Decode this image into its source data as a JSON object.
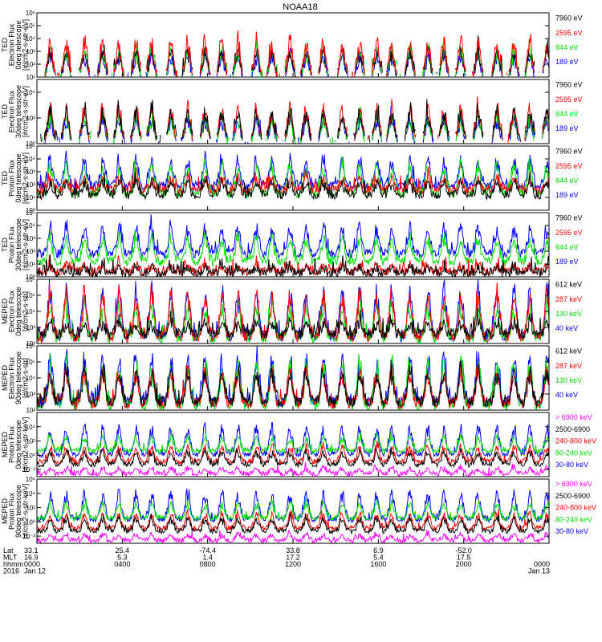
{
  "title": "NOAA18",
  "colors": {
    "black": "#000000",
    "red": "#ff0000",
    "green": "#00e000",
    "blue": "#0000ff",
    "magenta": "#ff00ff"
  },
  "axis_rows": {
    "labels": [
      "Lat",
      "MLT",
      "hhmm",
      "2016"
    ],
    "columns": [
      {
        "lat": "33.1",
        "mlt": "16.9",
        "hhmm": "0000",
        "date": "Jan 12"
      },
      {
        "lat": "25.4",
        "mlt": "5.3",
        "hhmm": "0400",
        "date": ""
      },
      {
        "lat": "-74.4",
        "mlt": "1.4",
        "hhmm": "0800",
        "date": ""
      },
      {
        "lat": "33.8",
        "mlt": "17.2",
        "hhmm": "1200",
        "date": ""
      },
      {
        "lat": "6.9",
        "mlt": "5.4",
        "hhmm": "1600",
        "date": ""
      },
      {
        "lat": "-52.0",
        "mlt": "17.5",
        "hhmm": "2000",
        "date": ""
      },
      {
        "lat": "",
        "mlt": "",
        "hhmm": "0000",
        "date": "Jan 13"
      }
    ]
  },
  "chart_data": [
    {
      "type": "line",
      "ylabel": [
        "TED",
        "Electron Flux",
        "0deg telescope",
        "[#/cm2-s-str-eV]"
      ],
      "yticks": [
        "10^1",
        "10^2",
        "10^3",
        "10^4",
        "10^5",
        "10^6"
      ],
      "ylim_exp": [
        1,
        6
      ],
      "series": [
        {
          "name": "7960 eV",
          "color": "#000000"
        },
        {
          "name": "2595 eV",
          "color": "#ff0000"
        },
        {
          "name": "844 eV",
          "color": "#00e000"
        },
        {
          "name": "189 eV",
          "color": "#0000ff"
        }
      ],
      "base_exp": [
        1.2,
        1.1,
        1.0,
        1.0
      ],
      "peak_exp": [
        3.3,
        4.3,
        3.6,
        3.0
      ],
      "draw_order": [
        3,
        2,
        0,
        1
      ],
      "sparse": true
    },
    {
      "type": "line",
      "ylabel": [
        "TED",
        "Electron Flux",
        "30deg telescope",
        "[#/cm2-s-str-eV]"
      ],
      "yticks": [
        "10^0",
        "10^2",
        "10^4"
      ],
      "ylim_exp": [
        0,
        5
      ],
      "series": [
        {
          "name": "7960 eV",
          "color": "#000000"
        },
        {
          "name": "2595 eV",
          "color": "#ff0000"
        },
        {
          "name": "844 eV",
          "color": "#00e000"
        },
        {
          "name": "189 eV",
          "color": "#0000ff"
        }
      ],
      "base_exp": [
        0.4,
        0.3,
        0.2,
        0.2
      ],
      "peak_exp": [
        2.8,
        3.3,
        2.5,
        2.2
      ],
      "draw_order": [
        3,
        2,
        1,
        0
      ],
      "sparse": true
    },
    {
      "type": "line",
      "ylabel": [
        "TED",
        "Proton Flux",
        "0deg telescope",
        "[#/cm2-s-str-eV]"
      ],
      "yticks": [
        "10^0",
        "10^1",
        "10^2",
        "10^3",
        "10^4",
        "10^5"
      ],
      "ylim_exp": [
        0,
        5
      ],
      "series": [
        {
          "name": "7960 eV",
          "color": "#000000"
        },
        {
          "name": "2595 eV",
          "color": "#ff0000"
        },
        {
          "name": "844 eV",
          "color": "#00e000"
        },
        {
          "name": "189 eV",
          "color": "#0000ff"
        }
      ],
      "base_exp": [
        1.2,
        1.6,
        1.3,
        1.9
      ],
      "peak_exp": [
        2.4,
        2.6,
        3.9,
        4.3
      ],
      "draw_order": [
        3,
        2,
        1,
        0
      ],
      "sparse": false
    },
    {
      "type": "line",
      "ylabel": [
        "TED",
        "Proton Flux",
        "30deg telescope",
        "[#/cm2-s-str-eV]"
      ],
      "yticks": [
        "10^0",
        "10^1",
        "10^2",
        "10^3",
        "10^4",
        "10^5"
      ],
      "ylim_exp": [
        0,
        5
      ],
      "series": [
        {
          "name": "7960 eV",
          "color": "#000000"
        },
        {
          "name": "2595 eV",
          "color": "#ff0000"
        },
        {
          "name": "844 eV",
          "color": "#00e000"
        },
        {
          "name": "189 eV",
          "color": "#0000ff"
        }
      ],
      "base_exp": [
        0.3,
        0.4,
        1.2,
        1.8
      ],
      "peak_exp": [
        0.8,
        1.0,
        3.4,
        4.2
      ],
      "draw_order": [
        3,
        2,
        1,
        0
      ],
      "sparse": false
    },
    {
      "type": "line",
      "ylabel": [
        "MEPED",
        "Electron Flux",
        "0deg telescope",
        "[#/cm2-s-str]"
      ],
      "yticks": [
        "10^2",
        "10^3",
        "10^4",
        "10^5",
        "10^6"
      ],
      "ylim_exp": [
        2,
        6
      ],
      "series": [
        {
          "name": "612 keV",
          "color": "#000000"
        },
        {
          "name": "287 keV",
          "color": "#ff0000"
        },
        {
          "name": "130 keV",
          "color": "#00e000"
        },
        {
          "name": "40 keV",
          "color": "#0000ff"
        }
      ],
      "base_exp": [
        2.6,
        2.4,
        2.35,
        2.45
      ],
      "peak_exp": [
        3.4,
        5.6,
        4.6,
        5.8
      ],
      "draw_order": [
        3,
        2,
        1,
        0
      ],
      "sparse": false
    },
    {
      "type": "line",
      "ylabel": [
        "MEPED",
        "Electron Flux",
        "90deg telescope",
        "[#/cm2-s-str]"
      ],
      "yticks": [
        "10^2",
        "10^3",
        "10^4",
        "10^5",
        "10^6"
      ],
      "ylim_exp": [
        2,
        6
      ],
      "series": [
        {
          "name": "612 keV",
          "color": "#000000"
        },
        {
          "name": "287 keV",
          "color": "#ff0000"
        },
        {
          "name": "130 keV",
          "color": "#00e000"
        },
        {
          "name": "40 keV",
          "color": "#0000ff"
        }
      ],
      "base_exp": [
        2.5,
        2.4,
        2.3,
        2.5
      ],
      "peak_exp": [
        4.8,
        4.7,
        5.4,
        5.7
      ],
      "draw_order": [
        3,
        2,
        1,
        0
      ],
      "sparse": false
    },
    {
      "type": "line",
      "ylabel": [
        "MEPED",
        "Proton Flux",
        "0deg telescope",
        "[#/cm2-s-str-keV]"
      ],
      "yticks": [
        "10^-2",
        "10^0",
        "10^2",
        "10^4"
      ],
      "ylim_exp": [
        -3,
        6
      ],
      "series": [
        {
          "name": "> 6900 keV",
          "color": "#ff00ff"
        },
        {
          "name": "2500-6900",
          "color": "#000000"
        },
        {
          "name": "240-800 keV",
          "color": "#ff0000"
        },
        {
          "name": "80-240 keV",
          "color": "#00e000"
        },
        {
          "name": "30-80 keV",
          "color": "#0000ff"
        }
      ],
      "base_exp": [
        -2.6,
        -1.3,
        -0.9,
        0.6,
        0.1
      ],
      "peak_exp": [
        -1.6,
        0.8,
        1.6,
        2.9,
        4.6
      ],
      "draw_order": [
        4,
        3,
        2,
        1,
        0
      ],
      "sparse": false
    },
    {
      "type": "line",
      "ylabel": [
        "MEPED",
        "Proton Flux",
        "90deg telescope",
        "[#/cm2-s-str-keV]"
      ],
      "yticks": [
        "10^-2",
        "10^0",
        "10^2",
        "10^4",
        "10^6"
      ],
      "ylim_exp": [
        -3,
        6
      ],
      "series": [
        {
          "name": "> 6900 keV",
          "color": "#ff00ff"
        },
        {
          "name": "2500-6900",
          "color": "#000000"
        },
        {
          "name": "240-800 keV",
          "color": "#ff0000"
        },
        {
          "name": "80-240 keV",
          "color": "#00e000"
        },
        {
          "name": "30-80 keV",
          "color": "#0000ff"
        }
      ],
      "base_exp": [
        -2.6,
        -1.3,
        -0.9,
        0.5,
        0.3
      ],
      "peak_exp": [
        -1.6,
        0.8,
        1.4,
        3.0,
        4.7
      ],
      "draw_order": [
        4,
        3,
        2,
        1,
        0
      ],
      "sparse": false
    }
  ]
}
